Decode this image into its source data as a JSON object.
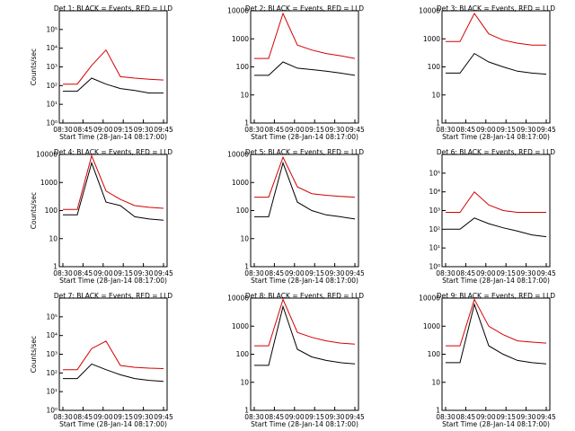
{
  "chart_data": [
    {
      "type": "line",
      "title": "Det 1: BLACK = Events, RED = LLD",
      "ylabel": "Counts/sec",
      "xlabel": "Start Time (28-Jan-14 08:17:00)",
      "yscale": "log",
      "ylim": [
        1,
        1000000
      ],
      "yticks": [
        "10⁰",
        "10¹",
        "10²",
        "10³",
        "10⁴",
        "10⁵"
      ],
      "xticks": [
        "08:30",
        "08:45",
        "09:00",
        "09:15",
        "09:30",
        "09:45"
      ],
      "series": [
        {
          "color": "#000000",
          "values": [
            50,
            50,
            250,
            120,
            70,
            55,
            40,
            40
          ]
        },
        {
          "color": "#d40000",
          "values": [
            120,
            120,
            1200,
            8000,
            300,
            250,
            220,
            200
          ]
        }
      ]
    },
    {
      "type": "line",
      "title": "Det 2: BLACK = Events, RED = LLD",
      "ylabel": "",
      "xlabel": "Start Time (28-Jan-14 08:17:00)",
      "yscale": "log",
      "ylim": [
        1,
        10000
      ],
      "yticks": [
        "1",
        "10",
        "100",
        "1000",
        "10000"
      ],
      "xticks": [
        "08:30",
        "08:45",
        "09:00",
        "09:15",
        "09:30",
        "09:45"
      ],
      "series": [
        {
          "color": "#000000",
          "values": [
            50,
            50,
            150,
            90,
            80,
            70,
            60,
            50
          ]
        },
        {
          "color": "#d40000",
          "values": [
            200,
            200,
            8000,
            600,
            400,
            300,
            250,
            200
          ]
        }
      ]
    },
    {
      "type": "line",
      "title": "Det 3: BLACK = Events, RED = LLD",
      "ylabel": "",
      "xlabel": "Start Time (28-Jan-14 08:17:00)",
      "yscale": "log",
      "ylim": [
        1,
        10000
      ],
      "yticks": [
        "1",
        "10",
        "100",
        "1000",
        "10000"
      ],
      "xticks": [
        "08:30",
        "08:45",
        "09:00",
        "09:15",
        "09:30",
        "09:45"
      ],
      "series": [
        {
          "color": "#000000",
          "values": [
            60,
            60,
            300,
            150,
            100,
            70,
            60,
            55
          ]
        },
        {
          "color": "#d40000",
          "values": [
            800,
            800,
            8000,
            1500,
            900,
            700,
            600,
            600
          ]
        }
      ]
    },
    {
      "type": "line",
      "title": "Det 4: BLACK = Events, RED = LLD",
      "ylabel": "Counts/sec",
      "xlabel": "Start Time (28-Jan-14 08:17:00)",
      "yscale": "log",
      "ylim": [
        1,
        10000
      ],
      "yticks": [
        "1",
        "10",
        "100",
        "1000",
        "10000"
      ],
      "xticks": [
        "08:30",
        "08:45",
        "09:00",
        "09:15",
        "09:30",
        "09:45"
      ],
      "series": [
        {
          "color": "#000000",
          "values": [
            70,
            70,
            5000,
            200,
            150,
            60,
            50,
            45
          ]
        },
        {
          "color": "#d40000",
          "values": [
            110,
            110,
            9000,
            500,
            250,
            150,
            130,
            120
          ]
        }
      ]
    },
    {
      "type": "line",
      "title": "Det 5: BLACK = Events, RED = LLD",
      "ylabel": "",
      "xlabel": "Start Time (28-Jan-14 08:17:00)",
      "yscale": "log",
      "ylim": [
        1,
        10000
      ],
      "yticks": [
        "1",
        "10",
        "100",
        "1000",
        "10000"
      ],
      "xticks": [
        "08:30",
        "08:45",
        "09:00",
        "09:15",
        "09:30",
        "09:45"
      ],
      "series": [
        {
          "color": "#000000",
          "values": [
            60,
            60,
            5000,
            200,
            100,
            70,
            60,
            50
          ]
        },
        {
          "color": "#d40000",
          "values": [
            300,
            300,
            8000,
            700,
            400,
            350,
            320,
            300
          ]
        }
      ]
    },
    {
      "type": "line",
      "title": "Det 6: BLACK = Events, RED = LLD",
      "ylabel": "",
      "xlabel": "Start Time (28-Jan-14 08:17:00)",
      "yscale": "log",
      "ylim": [
        1,
        1000000
      ],
      "yticks": [
        "10⁰",
        "10¹",
        "10²",
        "10³",
        "10⁴",
        "10⁵"
      ],
      "xticks": [
        "08:30",
        "08:45",
        "09:00",
        "09:15",
        "09:30",
        "09:45"
      ],
      "series": [
        {
          "color": "#000000",
          "values": [
            100,
            100,
            400,
            200,
            120,
            80,
            50,
            40
          ]
        },
        {
          "color": "#d40000",
          "values": [
            800,
            800,
            10000,
            2000,
            1000,
            800,
            800,
            800
          ]
        }
      ]
    },
    {
      "type": "line",
      "title": "Det 7: BLACK = Events, RED = LLD",
      "ylabel": "Counts/sec",
      "xlabel": "Start Time (28-Jan-14 08:17:00)",
      "yscale": "log",
      "ylim": [
        1,
        1000000
      ],
      "yticks": [
        "10⁰",
        "10¹",
        "10²",
        "10³",
        "10⁴",
        "10⁵"
      ],
      "xticks": [
        "08:30",
        "08:45",
        "09:00",
        "09:15",
        "09:30",
        "09:45"
      ],
      "series": [
        {
          "color": "#000000",
          "values": [
            50,
            50,
            300,
            150,
            80,
            50,
            40,
            35
          ]
        },
        {
          "color": "#d40000",
          "values": [
            150,
            150,
            2000,
            5000,
            250,
            200,
            180,
            170
          ]
        }
      ]
    },
    {
      "type": "line",
      "title": "Det 8: BLACK = Events, RED = LLD",
      "ylabel": "",
      "xlabel": "Start Time (28-Jan-14 08:17:00)",
      "yscale": "log",
      "ylim": [
        1,
        10000
      ],
      "yticks": [
        "1",
        "10",
        "100",
        "1000",
        "10000"
      ],
      "xticks": [
        "08:30",
        "08:45",
        "09:00",
        "09:15",
        "09:30",
        "09:45"
      ],
      "series": [
        {
          "color": "#000000",
          "values": [
            40,
            40,
            5000,
            150,
            80,
            60,
            50,
            45
          ]
        },
        {
          "color": "#d40000",
          "values": [
            200,
            200,
            9000,
            600,
            400,
            300,
            250,
            230
          ]
        }
      ]
    },
    {
      "type": "line",
      "title": "Det 9: BLACK = Events, RED = LLD",
      "ylabel": "",
      "xlabel": "Start Time (28-Jan-14 08:17:00)",
      "yscale": "log",
      "ylim": [
        1,
        10000
      ],
      "yticks": [
        "1",
        "10",
        "100",
        "1000",
        "10000"
      ],
      "xticks": [
        "08:30",
        "08:45",
        "09:00",
        "09:15",
        "09:30",
        "09:45"
      ],
      "series": [
        {
          "color": "#000000",
          "values": [
            50,
            50,
            6000,
            200,
            100,
            60,
            50,
            45
          ]
        },
        {
          "color": "#d40000",
          "values": [
            200,
            200,
            9000,
            1000,
            500,
            300,
            270,
            250
          ]
        }
      ]
    }
  ]
}
